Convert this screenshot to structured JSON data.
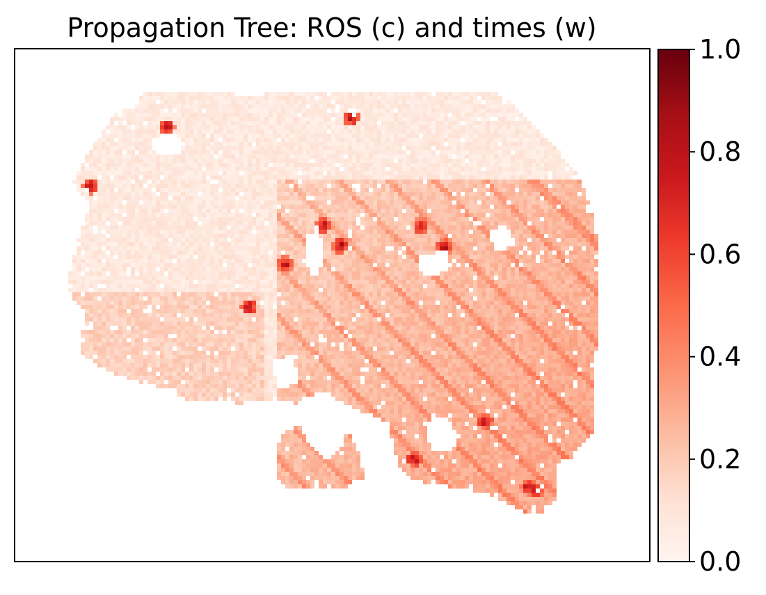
{
  "chart_data": {
    "type": "heatmap",
    "title": "Propagation Tree: ROS (c) and times (w)",
    "xlabel": "",
    "ylabel": "",
    "show_axes_ticks": false,
    "grid": false,
    "colormap": "Reds",
    "colormap_stops": [
      "#fff5f0",
      "#fee0d2",
      "#fcbba1",
      "#fc9272",
      "#fb6a4a",
      "#ef3b2c",
      "#cb181d",
      "#a50f15",
      "#67000d"
    ],
    "colorbar": {
      "range": [
        0.0,
        1.0
      ],
      "ticks": [
        0.0,
        0.2,
        0.4,
        0.6,
        0.8,
        1.0
      ],
      "tick_labels": [
        "0.0",
        "0.2",
        "0.4",
        "0.6",
        "0.8",
        "1.0"
      ],
      "placement": "right"
    },
    "value_distribution": {
      "dominant_range": [
        0.0,
        0.3
      ],
      "southeast_region_typical": 0.25,
      "northwest_region_typical": 0.08,
      "hotspots_max": 1.0
    }
  }
}
